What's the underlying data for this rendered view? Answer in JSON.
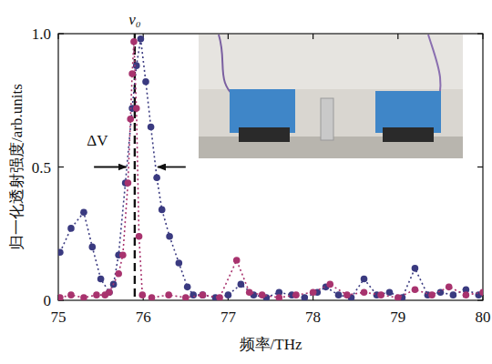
{
  "chart_data": {
    "type": "scatter",
    "x_label": "频率/THz",
    "y_label": "归一化透射强度/arb.units",
    "xlim": [
      75,
      80
    ],
    "ylim": [
      0,
      1
    ],
    "xticks": [
      75,
      76,
      77,
      78,
      79,
      80
    ],
    "yticks": [
      0,
      0.5,
      {
        "value": 1,
        "label": "1.0"
      }
    ],
    "grid": false,
    "series": [
      {
        "color": "#3a3a80",
        "marker": "circle",
        "line_style": "dotted",
        "x": [
          75.02,
          75.15,
          75.3,
          75.4,
          75.5,
          75.6,
          75.65,
          75.71,
          75.79,
          75.87,
          75.92,
          75.97,
          76.03,
          76.09,
          76.16,
          76.22,
          76.31,
          76.42,
          76.52,
          76.59,
          76.7,
          76.85,
          77.0,
          77.15,
          77.3,
          77.45,
          77.6,
          77.75,
          77.9,
          78.05,
          78.15,
          78.3,
          78.45,
          78.6,
          78.75,
          78.9,
          79.05,
          79.2,
          79.35,
          79.5,
          79.65,
          79.8,
          79.95
        ],
        "values": [
          0.18,
          0.27,
          0.33,
          0.2,
          0.08,
          0.03,
          0.06,
          0.17,
          0.44,
          0.72,
          0.88,
          0.98,
          0.82,
          0.65,
          0.46,
          0.34,
          0.24,
          0.14,
          0.05,
          0.02,
          0.02,
          0.01,
          0.02,
          0.06,
          0.02,
          0.01,
          0.03,
          0.02,
          0.01,
          0.03,
          0.05,
          0.02,
          0.01,
          0.08,
          0.02,
          0.03,
          0.01,
          0.12,
          0.02,
          0.03,
          0.02,
          0.04,
          0.02
        ]
      },
      {
        "color": "#a8336e",
        "marker": "circle",
        "line_style": "dotted",
        "x": [
          75.02,
          75.15,
          75.3,
          75.45,
          75.55,
          75.6,
          75.71,
          75.76,
          75.82,
          75.85,
          75.87,
          75.89,
          75.92,
          75.95,
          75.99,
          76.1,
          76.3,
          76.5,
          76.7,
          76.9,
          77.1,
          77.25,
          77.4,
          77.6,
          77.8,
          78.0,
          78.2,
          78.4,
          78.6,
          78.8,
          79.0,
          79.2,
          79.4,
          79.6,
          79.8,
          80.0
        ],
        "values": [
          0.01,
          0.02,
          0.01,
          0.02,
          0.02,
          0.03,
          0.1,
          0.17,
          0.44,
          0.68,
          0.85,
          0.97,
          0.72,
          0.24,
          0.02,
          0.01,
          0.02,
          0.01,
          0.02,
          0.01,
          0.15,
          0.03,
          0.02,
          0.01,
          0.02,
          0.03,
          0.06,
          0.02,
          0.03,
          0.02,
          0.01,
          0.04,
          0.02,
          0.05,
          0.02,
          0.03
        ]
      }
    ],
    "annotations": [
      {
        "text": "ν₀",
        "x": 75.9,
        "line_style": "dashed"
      },
      {
        "text": "ΔV",
        "x": 75.46,
        "y": 0.58
      }
    ],
    "arrows": [
      {
        "from": 75.42,
        "to": 75.8,
        "y": 0.5
      },
      {
        "from": 76.5,
        "to": 76.17,
        "y": 0.5
      }
    ]
  }
}
